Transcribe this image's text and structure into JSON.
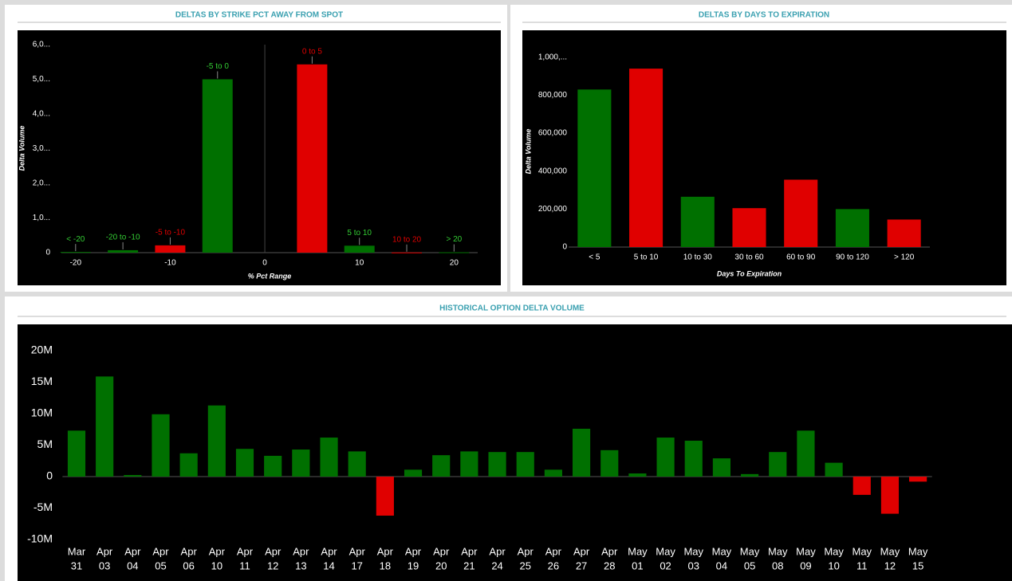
{
  "chart_data": [
    {
      "type": "bar",
      "title": "DELTAS BY STRIKE PCT AWAY FROM SPOT",
      "x_label": "% Pct Range",
      "y_label": "Delta Volume",
      "x": [
        -20,
        -15,
        -10,
        -5,
        5,
        10,
        15,
        20
      ],
      "labels": [
        "< -20",
        "-20 to -10",
        "-5 to -10",
        "-5 to 0",
        "0 to 5",
        "5 to 10",
        "10 to 20",
        "> 20"
      ],
      "values": [
        20000,
        70000,
        210000,
        5000000,
        5430000,
        200000,
        5000,
        10000
      ],
      "colors": [
        "#007000",
        "#007000",
        "#e00000",
        "#007000",
        "#e00000",
        "#007000",
        "#e00000",
        "#007000"
      ],
      "xlim": [
        -21.5,
        22.5
      ],
      "xticks": [
        -20,
        -10,
        0,
        10,
        20
      ],
      "ylim": [
        0,
        6000000
      ],
      "yticks": [
        0,
        {
          "value": 1000000,
          "label": "1,0..."
        },
        {
          "value": 2000000,
          "label": "2,0..."
        },
        {
          "value": 3000000,
          "label": "3,0..."
        },
        {
          "value": 4000000,
          "label": "4,0..."
        },
        {
          "value": 5000000,
          "label": "5,0..."
        },
        {
          "value": 6000000,
          "label": "6,0..."
        }
      ]
    },
    {
      "type": "bar",
      "title": "DELTAS BY DAYS TO EXPIRATION",
      "x_label": "Days To Expiration",
      "y_label": "Delta Volume",
      "categories": [
        "< 5",
        "5 to 10",
        "10 to 30",
        "30 to 60",
        "60 to 90",
        "90 to 120",
        "> 120"
      ],
      "values": [
        830000,
        940000,
        265000,
        205000,
        355000,
        200000,
        145000
      ],
      "colors": [
        "#007000",
        "#e00000",
        "#007000",
        "#e00000",
        "#e00000",
        "#007000",
        "#e00000"
      ],
      "ylim": [
        0,
        1100000
      ],
      "yticks": [
        0,
        {
          "value": 200000,
          "label": "200,000"
        },
        {
          "value": 400000,
          "label": "400,000"
        },
        {
          "value": 600000,
          "label": "600,000"
        },
        {
          "value": 800000,
          "label": "800,000"
        },
        {
          "value": 1000000,
          "label": "1,000,..."
        }
      ]
    },
    {
      "type": "bar",
      "title": "HISTORICAL OPTION DELTA VOLUME",
      "categories": [
        [
          "Mar",
          "31"
        ],
        [
          "Apr",
          "03"
        ],
        [
          "Apr",
          "04"
        ],
        [
          "Apr",
          "05"
        ],
        [
          "Apr",
          "06"
        ],
        [
          "Apr",
          "10"
        ],
        [
          "Apr",
          "11"
        ],
        [
          "Apr",
          "12"
        ],
        [
          "Apr",
          "13"
        ],
        [
          "Apr",
          "14"
        ],
        [
          "Apr",
          "17"
        ],
        [
          "Apr",
          "18"
        ],
        [
          "Apr",
          "19"
        ],
        [
          "Apr",
          "20"
        ],
        [
          "Apr",
          "21"
        ],
        [
          "Apr",
          "24"
        ],
        [
          "Apr",
          "25"
        ],
        [
          "Apr",
          "26"
        ],
        [
          "Apr",
          "27"
        ],
        [
          "Apr",
          "28"
        ],
        [
          "May",
          "01"
        ],
        [
          "May",
          "02"
        ],
        [
          "May",
          "03"
        ],
        [
          "May",
          "04"
        ],
        [
          "May",
          "05"
        ],
        [
          "May",
          "08"
        ],
        [
          "May",
          "09"
        ],
        [
          "May",
          "10"
        ],
        [
          "May",
          "11"
        ],
        [
          "May",
          "12"
        ],
        [
          "May",
          "15"
        ]
      ],
      "values": [
        7.3,
        15.9,
        0.25,
        9.9,
        3.7,
        11.3,
        4.4,
        3.3,
        4.3,
        6.2,
        4.0,
        -6.2,
        1.1,
        3.4,
        4.0,
        3.9,
        3.9,
        1.1,
        7.6,
        4.2,
        0.5,
        6.2,
        5.7,
        2.9,
        0.4,
        3.9,
        7.3,
        2.2,
        -2.9,
        -5.9,
        -0.8
      ],
      "positive_color": "#007000",
      "negative_color": "#e00000",
      "ylim": [
        -10,
        20
      ],
      "yticks": [
        {
          "value": -10,
          "label": "-10M"
        },
        {
          "value": -5,
          "label": "-5M"
        },
        0,
        {
          "value": 5,
          "label": "5M"
        },
        {
          "value": 10,
          "label": "10M"
        },
        {
          "value": 15,
          "label": "15M"
        },
        {
          "value": 20,
          "label": "20M"
        }
      ]
    }
  ]
}
